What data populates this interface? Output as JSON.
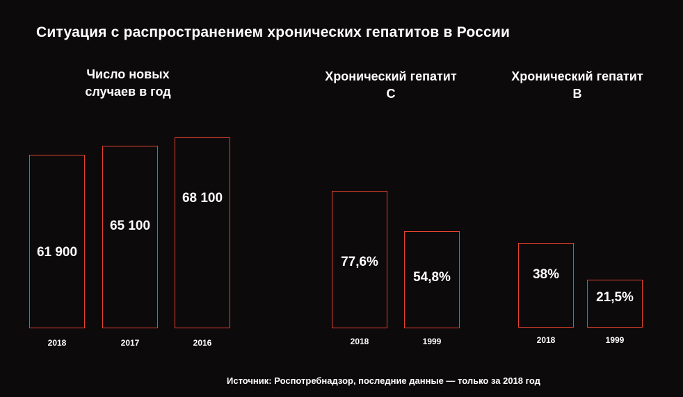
{
  "title": "Ситуация с распространением хронических гепатитов в России",
  "source": "Источник: Роспотребнадзор, последние данные — только за 2018 год",
  "colors": {
    "background": "#0d0a0b",
    "bar_outline": "#e8432e",
    "text": "#ffffff"
  },
  "chart_data": [
    {
      "type": "bar",
      "title": "Число новых случаев в год",
      "categories": [
        "2018",
        "2017",
        "2016"
      ],
      "values": [
        61900,
        65100,
        68100
      ],
      "labels": [
        "61 900",
        "65 100",
        "68 100"
      ]
    },
    {
      "type": "bar",
      "title": "Хронический гепатит С",
      "categories": [
        "2018",
        "1999"
      ],
      "values": [
        77.6,
        54.8
      ],
      "labels": [
        "77,6%",
        "54,8%"
      ]
    },
    {
      "type": "bar",
      "title": "Хронический гепатит В",
      "categories": [
        "2018",
        "1999"
      ],
      "values": [
        38,
        21.5
      ],
      "labels": [
        "38%",
        "21,5%"
      ]
    }
  ]
}
